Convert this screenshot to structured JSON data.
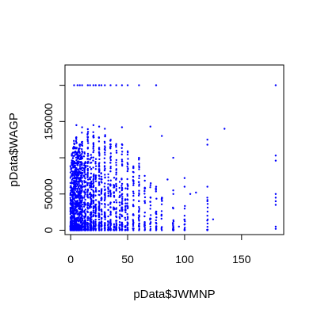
{
  "chart_data": {
    "type": "scatter",
    "xlabel": "pData$JWMNP",
    "ylabel": "pData$WAGP",
    "xlim": [
      -5,
      187
    ],
    "ylim": [
      -6000,
      228000
    ],
    "x_ticks": [
      0,
      50,
      100,
      150
    ],
    "y_ticks": [
      0,
      50000,
      150000
    ],
    "y_ticks_unlabeled": [
      100000,
      200000
    ],
    "x_tick_labels": [
      "0",
      "50",
      "100",
      "150"
    ],
    "y_tick_labels": [
      "0",
      "50000",
      "150000"
    ],
    "point_color": "#0000ff",
    "grid": false,
    "legend": "none",
    "points": [
      [
        3,
        200000.0
      ],
      [
        6,
        200000.0
      ],
      [
        8,
        200000.0
      ],
      [
        10,
        200000.0
      ],
      [
        15,
        200000.0
      ],
      [
        17,
        200000.0
      ],
      [
        20,
        200000.0
      ],
      [
        22,
        200000.0
      ],
      [
        25,
        200000.0
      ],
      [
        27,
        200000.0
      ],
      [
        30,
        200000.0
      ],
      [
        35,
        200000.0
      ],
      [
        40,
        200000.0
      ],
      [
        45,
        200000.0
      ],
      [
        50,
        200000.0
      ],
      [
        60,
        200000.0
      ],
      [
        75,
        200000.0
      ],
      [
        180,
        200000.0
      ],
      [
        5,
        145000
      ],
      [
        10,
        142000
      ],
      [
        20,
        145000
      ],
      [
        25,
        143000
      ],
      [
        30,
        140000
      ],
      [
        45,
        142000
      ],
      [
        70,
        143000
      ],
      [
        135,
        140000
      ],
      [
        120,
        125000
      ],
      [
        80,
        130000
      ],
      [
        3,
        120000
      ],
      [
        15,
        128000
      ],
      [
        90,
        100000
      ],
      [
        120,
        118000
      ],
      [
        180,
        103000
      ],
      [
        180,
        96000
      ],
      [
        180,
        50000
      ],
      [
        180,
        45000
      ],
      [
        180,
        40000
      ],
      [
        180,
        35000
      ],
      [
        180,
        5000
      ],
      [
        180,
        2000
      ],
      [
        100,
        72000
      ],
      [
        100,
        60000
      ],
      [
        105,
        50000
      ],
      [
        110,
        52000
      ],
      [
        120,
        60000
      ],
      [
        120,
        40000
      ],
      [
        120,
        20000
      ],
      [
        125,
        15000
      ],
      [
        100,
        20000
      ],
      [
        95,
        5000
      ],
      [
        90,
        30000
      ],
      [
        90,
        55000
      ],
      [
        85,
        70000
      ],
      [
        80,
        45000
      ],
      [
        75,
        60000
      ],
      [
        60,
        100000
      ],
      [
        55,
        88000
      ],
      [
        65,
        75000
      ]
    ],
    "dense_columns": [
      {
        "x": 0,
        "y_max": 95000,
        "n": 70
      },
      {
        "x": 1,
        "y_max": 110000,
        "n": 70
      },
      {
        "x": 2,
        "y_max": 120000,
        "n": 75
      },
      {
        "x": 3,
        "y_max": 125000,
        "n": 75
      },
      {
        "x": 4,
        "y_max": 118000,
        "n": 75
      },
      {
        "x": 5,
        "y_max": 130000,
        "n": 80
      },
      {
        "x": 6,
        "y_max": 110000,
        "n": 70
      },
      {
        "x": 7,
        "y_max": 115000,
        "n": 70
      },
      {
        "x": 8,
        "y_max": 120000,
        "n": 70
      },
      {
        "x": 9,
        "y_max": 105000,
        "n": 60
      },
      {
        "x": 10,
        "y_max": 135000,
        "n": 80
      },
      {
        "x": 12,
        "y_max": 115000,
        "n": 60
      },
      {
        "x": 13,
        "y_max": 95000,
        "n": 50
      },
      {
        "x": 15,
        "y_max": 140000,
        "n": 80
      },
      {
        "x": 17,
        "y_max": 100000,
        "n": 45
      },
      {
        "x": 18,
        "y_max": 110000,
        "n": 50
      },
      {
        "x": 20,
        "y_max": 140000,
        "n": 80
      },
      {
        "x": 22,
        "y_max": 100000,
        "n": 45
      },
      {
        "x": 25,
        "y_max": 135000,
        "n": 70
      },
      {
        "x": 27,
        "y_max": 90000,
        "n": 40
      },
      {
        "x": 30,
        "y_max": 135000,
        "n": 70
      },
      {
        "x": 33,
        "y_max": 80000,
        "n": 30
      },
      {
        "x": 35,
        "y_max": 125000,
        "n": 55
      },
      {
        "x": 38,
        "y_max": 80000,
        "n": 25
      },
      {
        "x": 40,
        "y_max": 120000,
        "n": 55
      },
      {
        "x": 43,
        "y_max": 70000,
        "n": 20
      },
      {
        "x": 45,
        "y_max": 120000,
        "n": 50
      },
      {
        "x": 48,
        "y_max": 65000,
        "n": 20
      },
      {
        "x": 50,
        "y_max": 110000,
        "n": 45
      },
      {
        "x": 55,
        "y_max": 90000,
        "n": 30
      },
      {
        "x": 60,
        "y_max": 100000,
        "n": 40
      },
      {
        "x": 65,
        "y_max": 70000,
        "n": 20
      },
      {
        "x": 70,
        "y_max": 75000,
        "n": 22
      },
      {
        "x": 75,
        "y_max": 65000,
        "n": 18
      },
      {
        "x": 80,
        "y_max": 55000,
        "n": 15
      },
      {
        "x": 90,
        "y_max": 70000,
        "n": 20
      },
      {
        "x": 100,
        "y_max": 50000,
        "n": 12
      },
      {
        "x": 120,
        "y_max": 50000,
        "n": 12
      }
    ]
  }
}
